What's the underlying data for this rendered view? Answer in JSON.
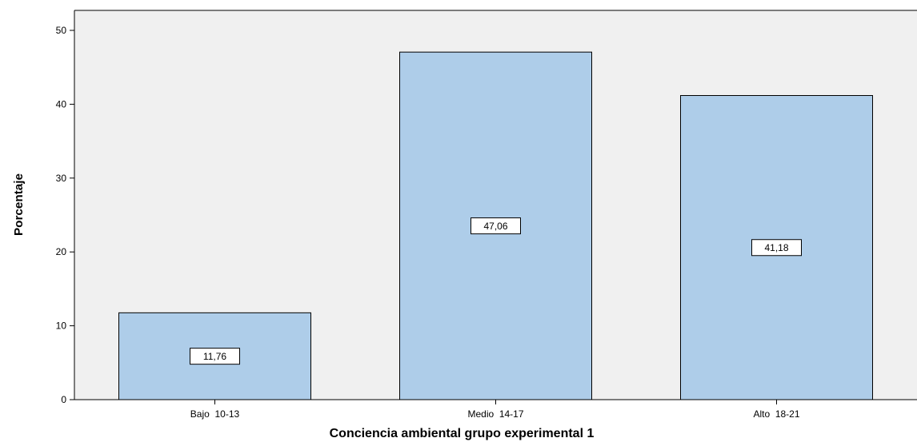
{
  "chart_data": {
    "type": "bar",
    "categories": [
      "Bajo  10-13",
      "Medio  14-17",
      "Alto  18-21"
    ],
    "values": [
      11.76,
      47.06,
      41.18
    ],
    "data_labels": [
      "11,76",
      "47,06",
      "41,18"
    ],
    "xlabel": "Conciencia ambiental grupo experimental 1",
    "ylabel": "Porcentaje",
    "ylim": [
      0,
      50
    ],
    "y_ticks": [
      0,
      10,
      20,
      30,
      40,
      50
    ],
    "y_tick_labels": [
      "0",
      "10",
      "20",
      "30",
      "40",
      "50"
    ],
    "grid": false,
    "legend": "none",
    "bar_color": "#aecde9",
    "bar_edge_color": "#000000",
    "plot_background": "#f0f0f0",
    "label_box_background": "#ffffff"
  }
}
